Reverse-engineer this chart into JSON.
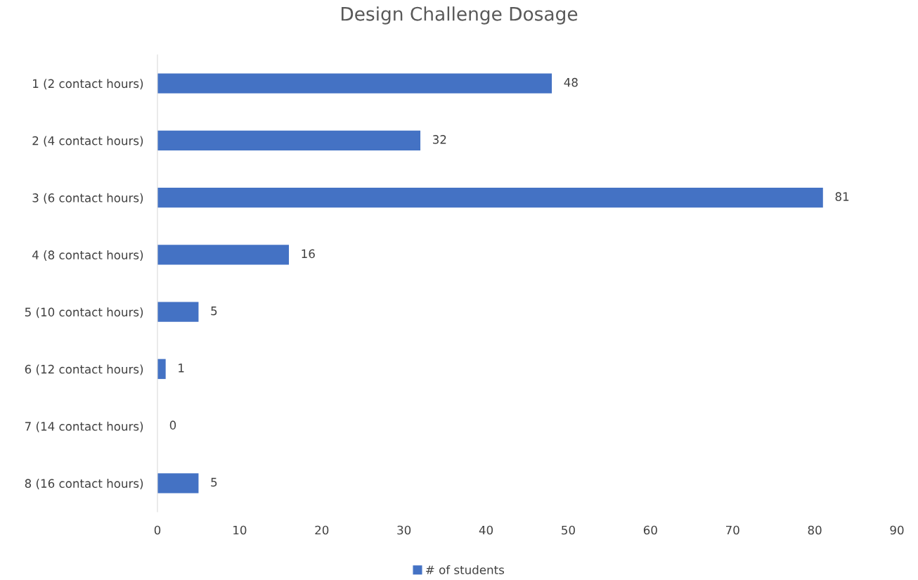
{
  "chart_data": {
    "type": "bar",
    "orientation": "horizontal",
    "title": "Design Challenge Dosage",
    "categories": [
      "1 (2 contact hours)",
      "2 (4 contact hours)",
      "3 (6 contact hours)",
      "4 (8 contact hours)",
      "5 (10 contact hours)",
      "6 (12 contact hours)",
      "7 (14 contact hours)",
      "8 (16 contact hours)"
    ],
    "series": [
      {
        "name": "# of students",
        "color": "#4472c4",
        "values": [
          48,
          32,
          81,
          16,
          5,
          1,
          0,
          5
        ]
      }
    ],
    "xlim": [
      0,
      90
    ],
    "xticks": [
      0,
      10,
      20,
      30,
      40,
      50,
      60,
      70,
      80,
      90
    ],
    "data_labels": true,
    "legend": "bottom",
    "grid": false
  }
}
